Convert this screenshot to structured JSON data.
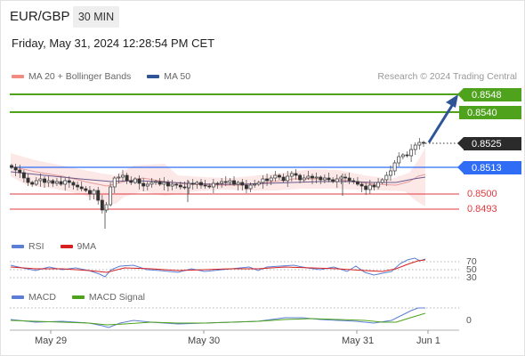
{
  "header": {
    "symbol": "EUR/GBP",
    "timeframe": "30 MIN",
    "datetime": "Friday, May 31, 2024 12:28:54 PM CET"
  },
  "legend_main": [
    {
      "label": "MA 20 + Bollinger Bands",
      "color": "#f28b82"
    },
    {
      "label": "MA 50",
      "color": "#2f5597"
    }
  ],
  "credit": "Research © 2024 Trading Central",
  "levels": {
    "target2": "0.8548",
    "target1": "0.8540",
    "last": "0.8525",
    "pivot": "0.8513",
    "support1": "0.8500",
    "support2": "0.8493"
  },
  "colors": {
    "green": "#4ea21c",
    "blue": "#2f6df5",
    "red": "#e0393e",
    "dark": "#2b2b2b",
    "arrow": "#2f5597"
  },
  "rsi": {
    "legend": [
      {
        "label": "RSI",
        "color": "#5b7fd6"
      },
      {
        "label": "9MA",
        "color": "#d62020"
      }
    ],
    "levels": [
      "70",
      "50",
      "30"
    ]
  },
  "macd": {
    "legend": [
      {
        "label": "MACD",
        "color": "#5b7fd6"
      },
      {
        "label": "MACD Signal",
        "color": "#4ea21c"
      }
    ],
    "zero_label": "0"
  },
  "xaxis": [
    "May 29",
    "May 30",
    "May 31",
    "Jun 1"
  ]
}
